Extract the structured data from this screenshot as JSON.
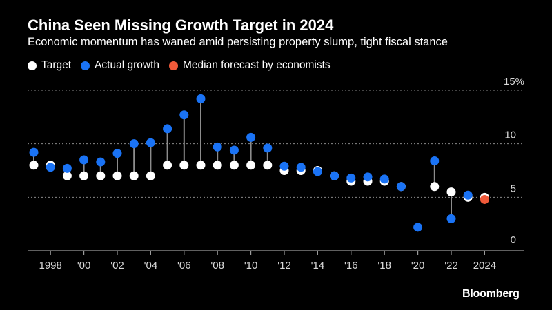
{
  "chart_data": {
    "type": "dot-plot",
    "title": "China Seen Missing Growth Target in 2024",
    "subtitle": "Economic momentum has waned amid persisting property slump, tight fiscal stance",
    "legend": [
      {
        "key": "target",
        "label": "Target",
        "color": "#ffffff"
      },
      {
        "key": "actual",
        "label": "Actual growth",
        "color": "#1a73f5"
      },
      {
        "key": "forecast",
        "label": "Median forecast by economists",
        "color": "#f05a3a"
      }
    ],
    "ylim": [
      0,
      15
    ],
    "yticks": [
      {
        "value": 0,
        "label": "0"
      },
      {
        "value": 5,
        "label": "5"
      },
      {
        "value": 10,
        "label": "10"
      },
      {
        "value": 15,
        "label": "15%"
      }
    ],
    "xlim": [
      1997,
      2025
    ],
    "xticks": [
      {
        "value": 1998,
        "label": "1998"
      },
      {
        "value": 2000,
        "label": "'00"
      },
      {
        "value": 2002,
        "label": "'02"
      },
      {
        "value": 2004,
        "label": "'04"
      },
      {
        "value": 2006,
        "label": "'06"
      },
      {
        "value": 2008,
        "label": "'08"
      },
      {
        "value": 2010,
        "label": "'10"
      },
      {
        "value": 2012,
        "label": "'12"
      },
      {
        "value": 2014,
        "label": "'14"
      },
      {
        "value": 2016,
        "label": "'16"
      },
      {
        "value": 2018,
        "label": "'18"
      },
      {
        "value": 2020,
        "label": "'20"
      },
      {
        "value": 2022,
        "label": "'22"
      },
      {
        "value": 2024,
        "label": "2024"
      }
    ],
    "years": [
      1997,
      1998,
      1999,
      2000,
      2001,
      2002,
      2003,
      2004,
      2005,
      2006,
      2007,
      2008,
      2009,
      2010,
      2011,
      2012,
      2013,
      2014,
      2015,
      2016,
      2017,
      2018,
      2019,
      2020,
      2021,
      2022,
      2023,
      2024
    ],
    "target": [
      8,
      8,
      7,
      7,
      7,
      7,
      7,
      7,
      8,
      8,
      8,
      8,
      8,
      8,
      8,
      7.5,
      7.5,
      7.5,
      7,
      6.5,
      6.5,
      6.5,
      6,
      null,
      6,
      5.5,
      5,
      5
    ],
    "actual": [
      9.2,
      7.8,
      7.7,
      8.5,
      8.3,
      9.1,
      10.0,
      10.1,
      11.4,
      12.7,
      14.2,
      9.7,
      9.4,
      10.6,
      9.6,
      7.9,
      7.8,
      7.4,
      7.0,
      6.8,
      6.9,
      6.7,
      6.0,
      2.2,
      8.4,
      3.0,
      5.2,
      null
    ],
    "forecast": [
      null,
      null,
      null,
      null,
      null,
      null,
      null,
      null,
      null,
      null,
      null,
      null,
      null,
      null,
      null,
      null,
      null,
      null,
      null,
      null,
      null,
      null,
      null,
      null,
      null,
      null,
      null,
      4.8
    ]
  },
  "brand": "Bloomberg"
}
